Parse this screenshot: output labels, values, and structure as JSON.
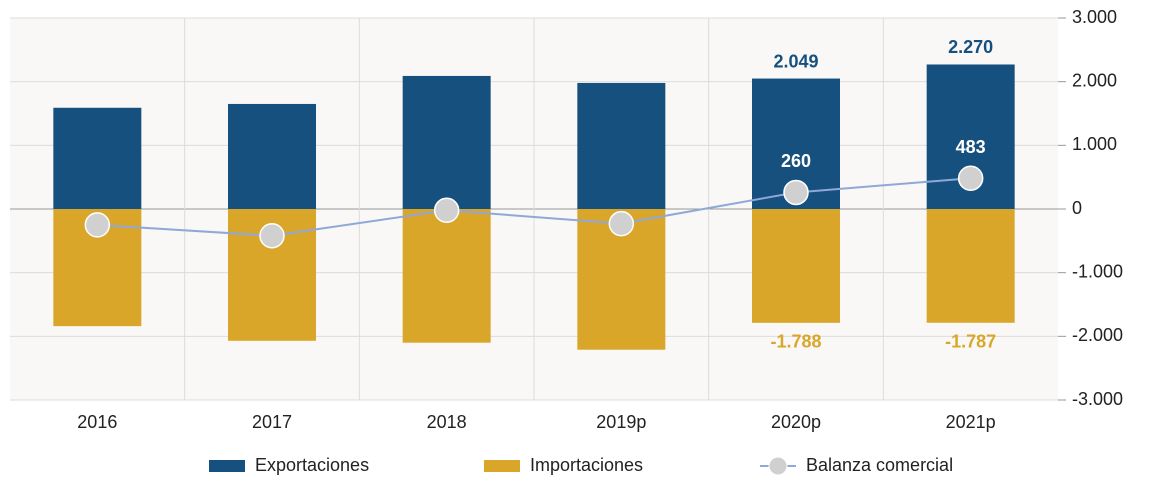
{
  "chart_data": {
    "type": "bar-line",
    "categories": [
      "2016",
      "2017",
      "2018",
      "2019p",
      "2020p",
      "2021p"
    ],
    "series": [
      {
        "name": "Exportaciones",
        "type": "bar",
        "color": "#16507f",
        "label_color": "#16507f",
        "values": [
          1590,
          1650,
          2090,
          1980,
          2049,
          2270
        ],
        "value_labels": [
          null,
          null,
          null,
          null,
          "2.049",
          "2.270"
        ]
      },
      {
        "name": "Importaciones",
        "type": "bar",
        "color": "#d9a62a",
        "label_color": "#d9a62a",
        "values": [
          -1840,
          -2070,
          -2100,
          -2210,
          -1788,
          -1787
        ],
        "value_labels": [
          null,
          null,
          null,
          null,
          "-1.788",
          "-1.787"
        ]
      },
      {
        "name": "Balanza comercial",
        "type": "line",
        "color": "#8ea8d8",
        "marker_color": "#d0d0d0",
        "label_color": "#ffffff",
        "values": [
          -250,
          -420,
          -20,
          -230,
          260,
          483
        ],
        "value_labels": [
          null,
          null,
          null,
          null,
          "260",
          "483"
        ]
      }
    ],
    "ylim": [
      -3000,
      3000
    ],
    "yticks": [
      {
        "value": -3000,
        "label": "-3.000"
      },
      {
        "value": -2000,
        "label": "-2.000"
      },
      {
        "value": -1000,
        "label": "-1.000"
      },
      0,
      {
        "value": 1000,
        "label": "1.000"
      },
      {
        "value": 2000,
        "label": "2.000"
      },
      {
        "value": 3000,
        "label": "3.000"
      }
    ],
    "grid": true,
    "legend": "bottom"
  }
}
